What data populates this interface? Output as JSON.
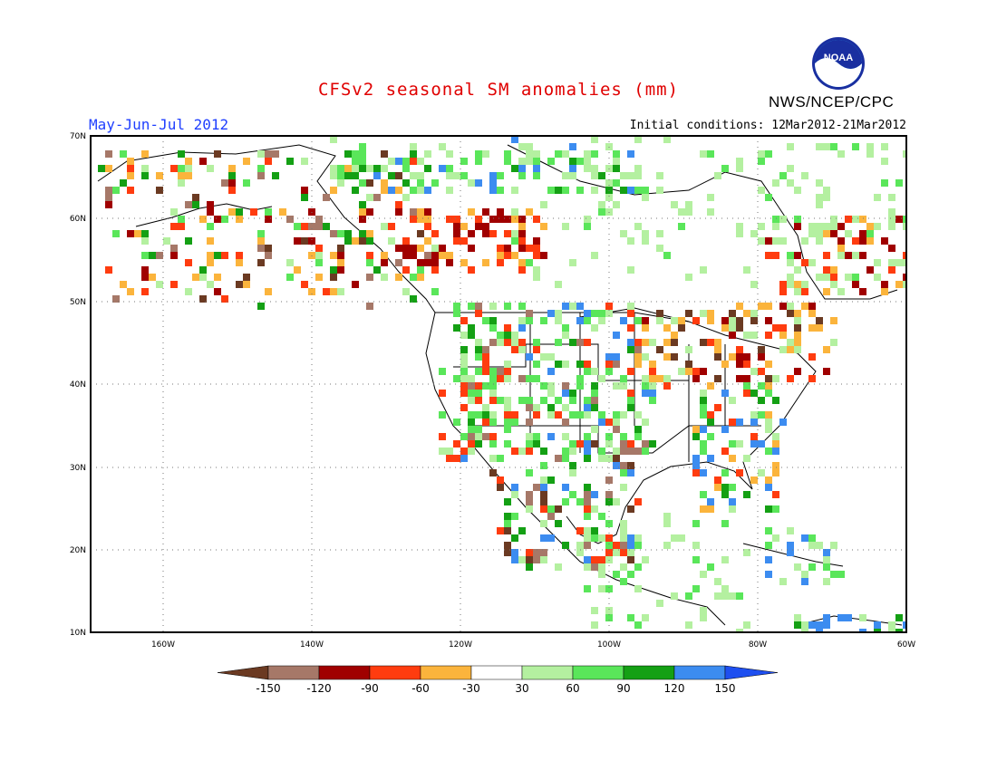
{
  "header": {
    "title": "CFSv2 seasonal SM anomalies (mm)",
    "agency": "NWS/NCEP/CPC",
    "logo_text": "NOAA",
    "period": "May-Jun-Jul 2012",
    "initial_conditions": "Initial conditions: 12Mar2012-21Mar2012"
  },
  "map": {
    "lat_labels": [
      "70N",
      "60N",
      "50N",
      "40N",
      "30N",
      "20N",
      "10N"
    ],
    "lon_labels": [
      "160W",
      "140W",
      "120W",
      "100W",
      "80W",
      "60W"
    ],
    "grid": "dotted",
    "region": "North America"
  },
  "colorbar": {
    "colors": [
      "#6b3a22",
      "#a67868",
      "#a00000",
      "#ff3c0f",
      "#fbb43c",
      "#ffffff",
      "#b4f0a0",
      "#5ae65a",
      "#14a014",
      "#3c8cf0",
      "#1e4ff0"
    ],
    "labels": [
      "-150",
      "-120",
      "-90",
      "-60",
      "-30",
      "30",
      "60",
      "90",
      "120",
      "150"
    ]
  },
  "colors": {
    "title": "#e00000",
    "period": "#1f3fff"
  }
}
